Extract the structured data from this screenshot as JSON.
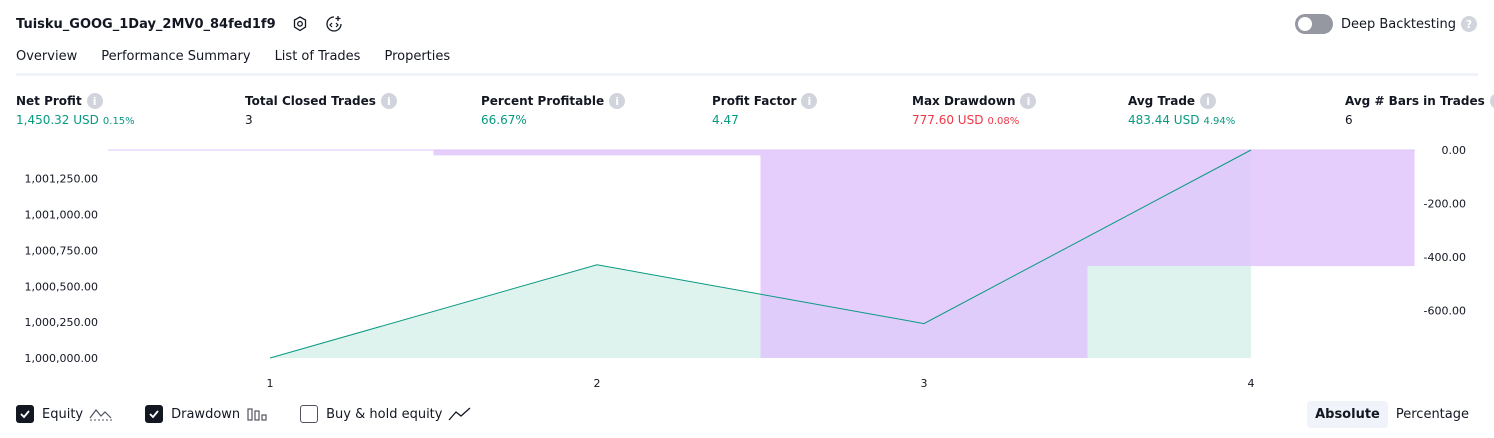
{
  "header": {
    "strategy_name": "Tuisku_GOOG_1Day_2MV0_84fed1f9",
    "icons": [
      "settings-icon",
      "source-code-icon"
    ]
  },
  "deep_backtesting": {
    "label": "Deep Backtesting",
    "enabled": false,
    "help": "?"
  },
  "tabs": [
    {
      "label": "Overview",
      "active": true
    },
    {
      "label": "Performance Summary",
      "active": false
    },
    {
      "label": "List of Trades",
      "active": false
    },
    {
      "label": "Properties",
      "active": false
    }
  ],
  "metrics": [
    {
      "label": "Net Profit",
      "value": "1,450.32 USD",
      "pct": "0.15%",
      "color": "#089981"
    },
    {
      "label": "Total Closed Trades",
      "value": "3",
      "pct": "",
      "color": "#131722"
    },
    {
      "label": "Percent Profitable",
      "value": "66.67%",
      "pct": "",
      "color": "#089981"
    },
    {
      "label": "Profit Factor",
      "value": "4.47",
      "pct": "",
      "color": "#089981"
    },
    {
      "label": "Max Drawdown",
      "value": "777.60 USD",
      "pct": "0.08%",
      "color": "#f23645"
    },
    {
      "label": "Avg Trade",
      "value": "483.44 USD",
      "pct": "4.94%",
      "color": "#089981"
    },
    {
      "label": "Avg # Bars in Trades",
      "value": "6",
      "pct": "",
      "color": "#131722"
    }
  ],
  "chart_data": {
    "type": "area",
    "x": [
      1,
      2,
      3,
      4
    ],
    "equity": [
      1000000.0,
      1000650.0,
      1000240.0,
      1001450.32
    ],
    "drawdown_bars": [
      {
        "x_from": 1.5,
        "x_to": 2.5,
        "value": -20
      },
      {
        "x_from": 2.5,
        "x_to": 3.5,
        "value": -777.6
      },
      {
        "x_from": 3.5,
        "x_to": 4.5,
        "value": -434
      }
    ],
    "left_axis": {
      "ticks": [
        "1,001,250.00",
        "1,001,000.00",
        "1,000,750.00",
        "1,000,500.00",
        "1,000,250.00",
        "1,000,000.00"
      ],
      "ylim": [
        1000000,
        1001450.32
      ]
    },
    "right_axis": {
      "ticks": [
        "0.00",
        "-200.00",
        "-400.00",
        "-600.00"
      ],
      "ylim": [
        -777.6,
        0
      ]
    },
    "x_ticks": [
      "1",
      "2",
      "3",
      "4"
    ],
    "colors": {
      "equity_line": "#089981",
      "equity_fill": "#dff3ee",
      "drawdown": "#e1c4fb"
    }
  },
  "legend": [
    {
      "label": "Equity",
      "checked": true,
      "icon": "equity-line-icon"
    },
    {
      "label": "Drawdown",
      "checked": true,
      "icon": "drawdown-bars-icon"
    },
    {
      "label": "Buy & hold equity",
      "checked": false,
      "icon": "buy-hold-line-icon"
    }
  ],
  "mode": {
    "absolute": "Absolute",
    "percentage": "Percentage",
    "selected": "Absolute"
  }
}
